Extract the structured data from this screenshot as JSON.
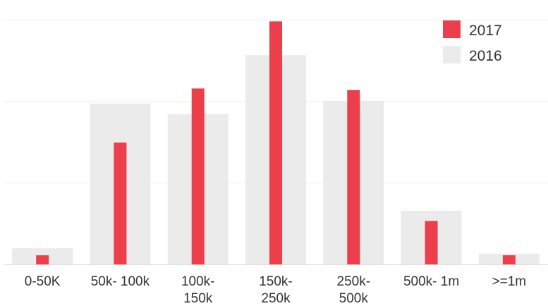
{
  "chart_data": {
    "type": "bar",
    "title": "",
    "xlabel": "",
    "ylabel": "",
    "categories": [
      [
        "0-50K"
      ],
      [
        "50k- 100k"
      ],
      [
        "100k-",
        "150k"
      ],
      [
        "150k-",
        "250k"
      ],
      [
        "250k-",
        "500k"
      ],
      [
        "500k- 1m"
      ],
      [
        ">=1m"
      ]
    ],
    "series": [
      {
        "name": "2017",
        "values": [
          0.17,
          2.27,
          3.28,
          4.53,
          3.25,
          0.81,
          0.17
        ],
        "color": "#ec3f4b"
      },
      {
        "name": "2016",
        "values": [
          0.3,
          3.0,
          2.8,
          3.9,
          3.05,
          1.0,
          0.2
        ],
        "color": "#ebebeb"
      }
    ],
    "ylim": [
      0,
      4.6
    ],
    "grid": true,
    "legend_position": "top-right",
    "show_y_tick_labels": false
  }
}
